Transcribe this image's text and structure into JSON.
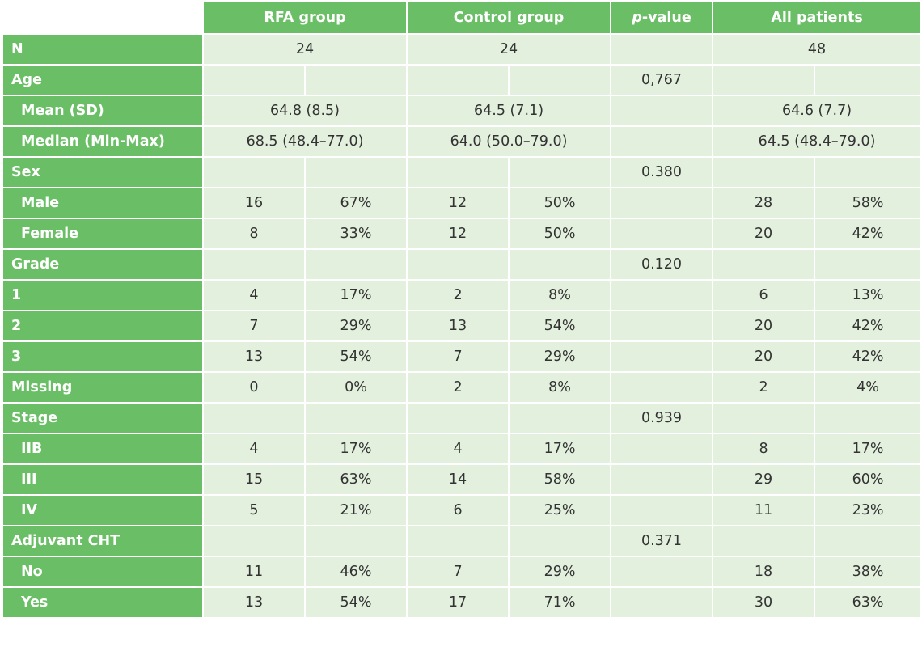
{
  "header": {
    "rfa": "RFA group",
    "control": "Control group",
    "p_italic": "p",
    "p_rest": "-value",
    "all": "All patients"
  },
  "rows": [
    {
      "label": "N",
      "sub": false,
      "merged": true,
      "rfa": "24",
      "ctrl": "24",
      "p": "",
      "all": "48"
    },
    {
      "label": "Age",
      "sub": false,
      "merged": false,
      "rfa_n": "",
      "rfa_pct": "",
      "ctrl_n": "",
      "ctrl_pct": "",
      "p": "0,767",
      "all_n": "",
      "all_pct": ""
    },
    {
      "label": "Mean (SD)",
      "sub": true,
      "merged": true,
      "rfa": "64.8 (8.5)",
      "ctrl": "64.5 (7.1)",
      "p": "",
      "all": "64.6 (7.7)"
    },
    {
      "label": "Median (Min-Max)",
      "sub": true,
      "merged": true,
      "rfa": "68.5 (48.4–77.0)",
      "ctrl": "64.0 (50.0–79.0)",
      "p": "",
      "all": "64.5 (48.4–79.0)"
    },
    {
      "label": "Sex",
      "sub": false,
      "merged": false,
      "rfa_n": "",
      "rfa_pct": "",
      "ctrl_n": "",
      "ctrl_pct": "",
      "p": "0.380",
      "all_n": "",
      "all_pct": ""
    },
    {
      "label": "Male",
      "sub": true,
      "merged": false,
      "rfa_n": "16",
      "rfa_pct": "67%",
      "ctrl_n": "12",
      "ctrl_pct": "50%",
      "p": "",
      "all_n": "28",
      "all_pct": "58%"
    },
    {
      "label": "Female",
      "sub": true,
      "merged": false,
      "rfa_n": "8",
      "rfa_pct": "33%",
      "ctrl_n": "12",
      "ctrl_pct": "50%",
      "p": "",
      "all_n": "20",
      "all_pct": "42%"
    },
    {
      "label": "Grade",
      "sub": false,
      "merged": false,
      "rfa_n": "",
      "rfa_pct": "",
      "ctrl_n": "",
      "ctrl_pct": "",
      "p": "0.120",
      "all_n": "",
      "all_pct": ""
    },
    {
      "label": "1",
      "sub": false,
      "merged": false,
      "rfa_n": "4",
      "rfa_pct": "17%",
      "ctrl_n": "2",
      "ctrl_pct": "8%",
      "p": "",
      "all_n": "6",
      "all_pct": "13%"
    },
    {
      "label": "2",
      "sub": false,
      "merged": false,
      "rfa_n": "7",
      "rfa_pct": "29%",
      "ctrl_n": "13",
      "ctrl_pct": "54%",
      "p": "",
      "all_n": "20",
      "all_pct": "42%"
    },
    {
      "label": "3",
      "sub": false,
      "merged": false,
      "rfa_n": "13",
      "rfa_pct": "54%",
      "ctrl_n": "7",
      "ctrl_pct": "29%",
      "p": "",
      "all_n": "20",
      "all_pct": "42%"
    },
    {
      "label": "Missing",
      "sub": false,
      "merged": false,
      "rfa_n": "0",
      "rfa_pct": "0%",
      "ctrl_n": "2",
      "ctrl_pct": "8%",
      "p": "",
      "all_n": "2",
      "all_pct": "4%"
    },
    {
      "label": "Stage",
      "sub": false,
      "merged": false,
      "rfa_n": "",
      "rfa_pct": "",
      "ctrl_n": "",
      "ctrl_pct": "",
      "p": "0.939",
      "all_n": "",
      "all_pct": ""
    },
    {
      "label": "IIB",
      "sub": true,
      "merged": false,
      "rfa_n": "4",
      "rfa_pct": "17%",
      "ctrl_n": "4",
      "ctrl_pct": "17%",
      "p": "",
      "all_n": "8",
      "all_pct": "17%"
    },
    {
      "label": "III",
      "sub": true,
      "merged": false,
      "rfa_n": "15",
      "rfa_pct": "63%",
      "ctrl_n": "14",
      "ctrl_pct": "58%",
      "p": "",
      "all_n": "29",
      "all_pct": "60%"
    },
    {
      "label": "IV",
      "sub": true,
      "merged": false,
      "rfa_n": "5",
      "rfa_pct": "21%",
      "ctrl_n": "6",
      "ctrl_pct": "25%",
      "p": "",
      "all_n": "11",
      "all_pct": "23%"
    },
    {
      "label": "Adjuvant CHT",
      "sub": false,
      "merged": false,
      "rfa_n": "",
      "rfa_pct": "",
      "ctrl_n": "",
      "ctrl_pct": "",
      "p": "0.371",
      "all_n": "",
      "all_pct": ""
    },
    {
      "label": "No",
      "sub": true,
      "merged": false,
      "rfa_n": "11",
      "rfa_pct": "46%",
      "ctrl_n": "7",
      "ctrl_pct": "29%",
      "p": "",
      "all_n": "18",
      "all_pct": "38%"
    },
    {
      "label": "Yes",
      "sub": true,
      "merged": false,
      "rfa_n": "13",
      "rfa_pct": "54%",
      "ctrl_n": "17",
      "ctrl_pct": "71%",
      "p": "",
      "all_n": "30",
      "all_pct": "63%"
    }
  ],
  "colors": {
    "header_green": "#6abf66",
    "cell_green": "#e3f0de",
    "text": "#333333"
  }
}
